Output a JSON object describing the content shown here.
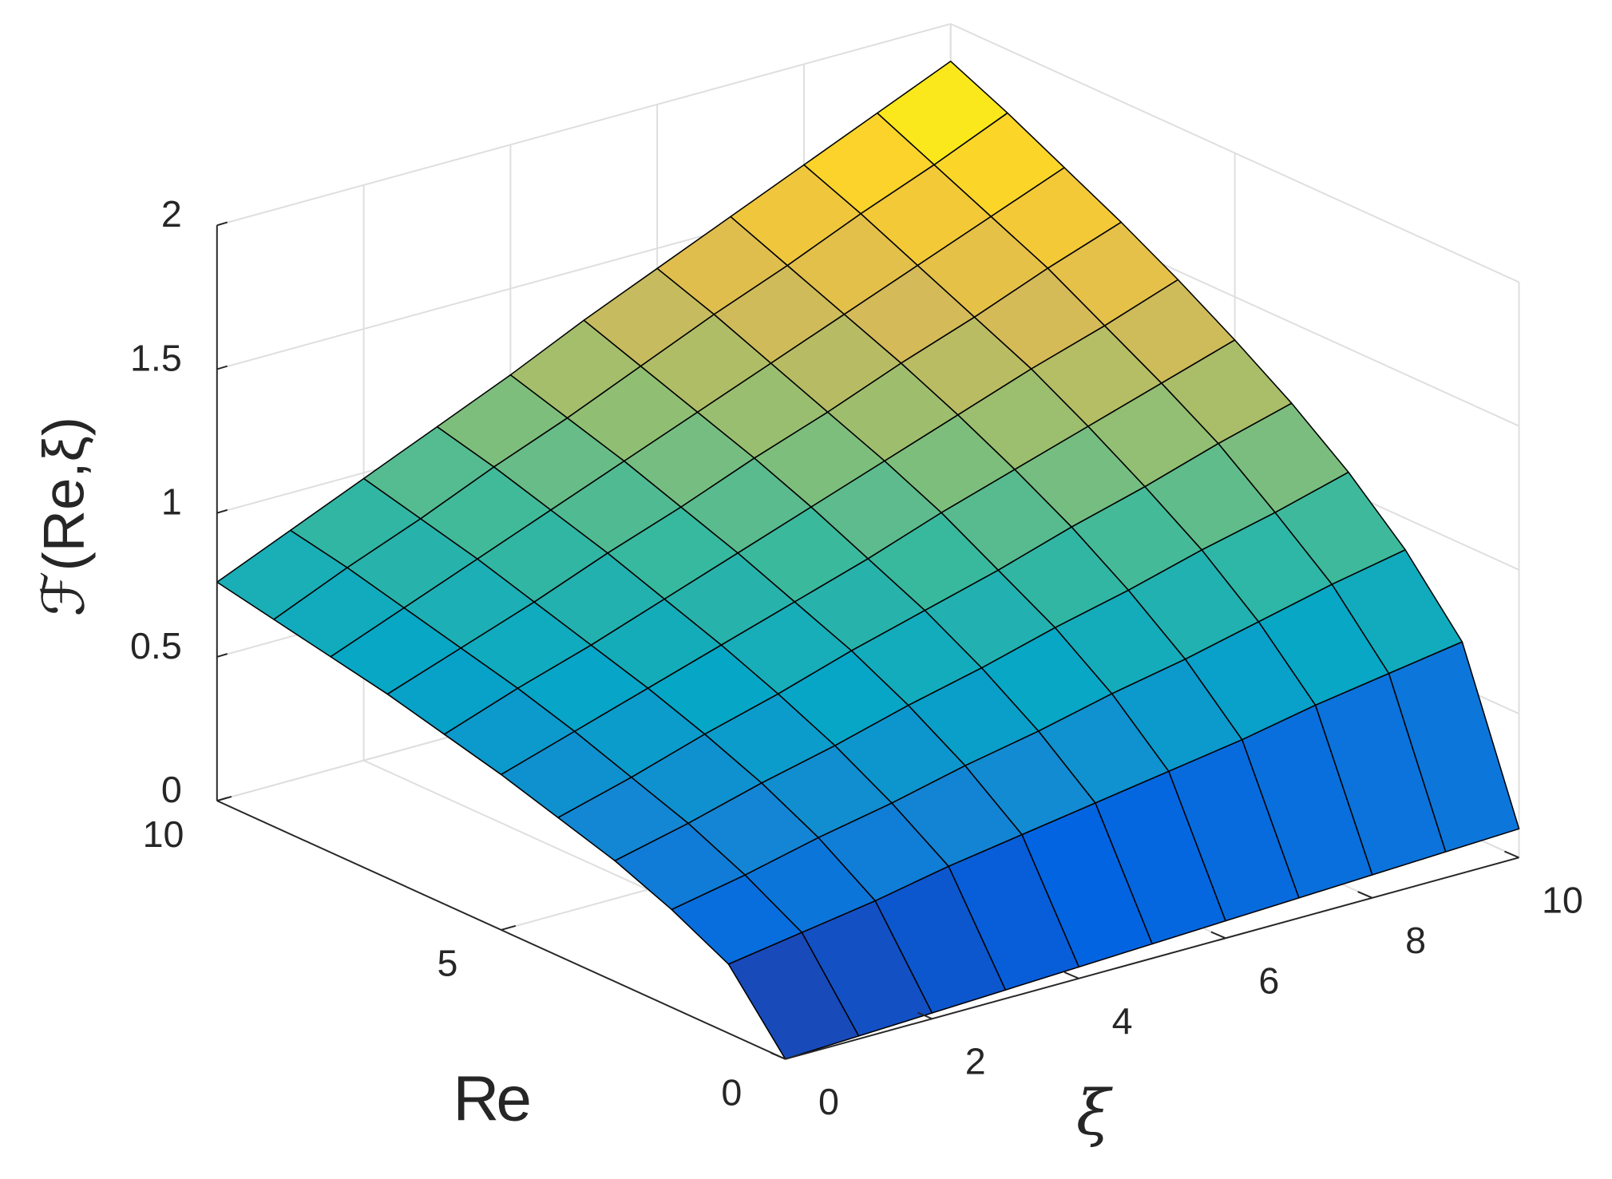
{
  "chart_data": {
    "type": "surface",
    "x_label": "ξ",
    "y_label": "Re",
    "z_label": "ℱ(Re,ξ)",
    "x": [
      0,
      1,
      2,
      3,
      4,
      5,
      6,
      7,
      8,
      9,
      10
    ],
    "y": [
      0,
      1,
      2,
      3,
      4,
      5,
      6,
      7,
      8,
      9,
      10
    ],
    "z": [
      [
        0,
        0.01,
        0.02,
        0.03,
        0.04,
        0.05,
        0.06,
        0.07,
        0.08,
        0.09,
        0.1
      ],
      [
        0.24,
        0.28,
        0.32,
        0.37,
        0.41,
        0.45,
        0.49,
        0.53,
        0.58,
        0.62,
        0.66
      ],
      [
        0.34,
        0.39,
        0.45,
        0.5,
        0.56,
        0.61,
        0.67,
        0.72,
        0.78,
        0.84,
        0.89
      ],
      [
        0.42,
        0.48,
        0.55,
        0.61,
        0.68,
        0.74,
        0.81,
        0.87,
        0.94,
        1.0,
        1.07
      ],
      [
        0.48,
        0.55,
        0.63,
        0.7,
        0.78,
        0.85,
        0.92,
        1.0,
        1.07,
        1.15,
        1.22
      ],
      [
        0.54,
        0.62,
        0.7,
        0.78,
        0.86,
        0.94,
        1.03,
        1.11,
        1.19,
        1.27,
        1.35
      ],
      [
        0.59,
        0.68,
        0.76,
        0.85,
        0.94,
        1.03,
        1.12,
        1.21,
        1.3,
        1.38,
        1.47
      ],
      [
        0.64,
        0.73,
        0.82,
        0.92,
        1.01,
        1.11,
        1.2,
        1.3,
        1.39,
        1.49,
        1.58
      ],
      [
        0.68,
        0.78,
        0.88,
        0.98,
        1.08,
        1.18,
        1.28,
        1.38,
        1.48,
        1.58,
        1.68
      ],
      [
        0.72,
        0.83,
        0.93,
        1.04,
        1.14,
        1.25,
        1.36,
        1.46,
        1.57,
        1.67,
        1.78
      ],
      [
        0.76,
        0.87,
        0.98,
        1.09,
        1.2,
        1.32,
        1.43,
        1.54,
        1.65,
        1.76,
        1.87
      ]
    ],
    "xlim": [
      0,
      10
    ],
    "ylim": [
      0,
      10
    ],
    "zlim": [
      0,
      2
    ],
    "xticks": [
      0,
      2,
      4,
      6,
      8,
      10
    ],
    "yticks": [
      0,
      5,
      10
    ],
    "zticks": [
      0,
      0.5,
      1,
      1.5,
      2
    ],
    "grid": true,
    "colormap": "parula",
    "edge_color": "#000000"
  }
}
